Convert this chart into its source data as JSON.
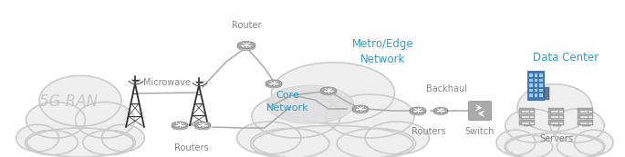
{
  "bg_color": "#ffffff",
  "cloud_color": "#efefef",
  "cloud_edge_color": "#cccccc",
  "router_color": "#999999",
  "router_body_color": "#aaaaaa",
  "text_color_gray": "#888888",
  "text_color_blue": "#3399cc",
  "label_microwave": "Microwave",
  "label_backhaul": "Backhaul",
  "label_5gran": "5G RAN",
  "label_routers_left": "Routers",
  "label_routers_right": "Routers",
  "label_router_top": "Router",
  "label_metro": "Metro/Edge\nNetwork",
  "label_core": "Core\nNetwork",
  "label_datacenter": "Data Center",
  "label_switch": "Switch",
  "label_servers": "Servers",
  "core_ellipse_color": "#dedede",
  "line_color": "#aaaaaa",
  "tower_color": "#333333",
  "signal_color": "#555555"
}
